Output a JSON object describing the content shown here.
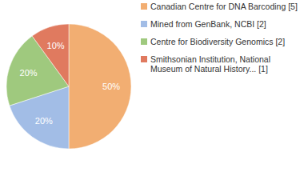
{
  "chart_data": {
    "type": "pie",
    "categories": [
      "Canadian Centre for DNA Barcoding [5]",
      "Mined from GenBank, NCBI [2]",
      "Centre for Biodiversity Genomics [2]",
      "Smithsonian Institution, National Museum of Natural History... [1]"
    ],
    "values": [
      50,
      20,
      20,
      10
    ],
    "value_labels": [
      "50%",
      "20%",
      "20%",
      "10%"
    ],
    "colors": [
      "#f2ae72",
      "#a2bde6",
      "#9fc97e",
      "#e07a5f"
    ],
    "data_labels": true
  }
}
